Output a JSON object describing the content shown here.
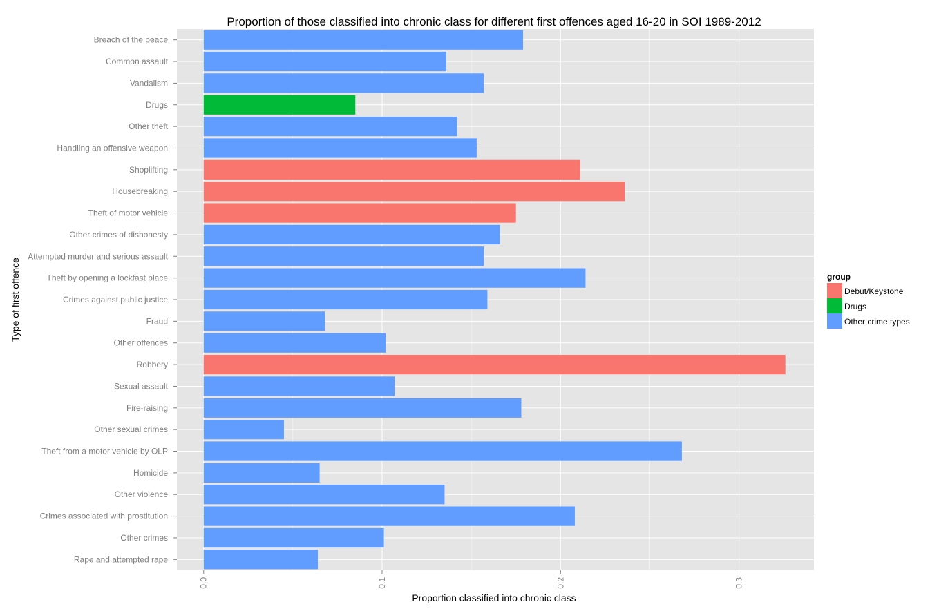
{
  "chart_data": {
    "type": "bar",
    "orientation": "horizontal",
    "title": "Proportion of those classified into chronic class for different first offences aged 16-20 in SOI 1989-2012",
    "xlabel": "Proportion classified into chronic class",
    "ylabel": "Type of first offence",
    "xlim": [
      -0.015,
      0.342
    ],
    "x_ticks": [
      "0.0",
      "0.1",
      "0.2",
      "0.3"
    ],
    "grid": true,
    "legend": {
      "title": "group",
      "placement": "right",
      "entries": [
        {
          "label": "Debut/Keystone",
          "color": "#F8766D"
        },
        {
          "label": "Drugs",
          "color": "#00BA38"
        },
        {
          "label": "Other crime types",
          "color": "#619CFF"
        }
      ]
    },
    "categories": [
      "Breach of the peace",
      "Common assault",
      "Vandalism",
      "Drugs",
      "Other theft",
      "Handling an offensive weapon",
      "Shoplifting",
      "Housebreaking",
      "Theft of motor vehicle",
      "Other crimes of dishonesty",
      "Attempted murder and serious assault",
      "Theft by opening a lockfast place",
      "Crimes against public justice",
      "Fraud",
      "Other offences",
      "Robbery",
      "Sexual assault",
      "Fire-raising",
      "Other sexual crimes",
      "Theft from a motor vehicle by OLP",
      "Homicide",
      "Other violence",
      "Crimes associated with prostitution",
      "Other crimes",
      "Rape and attempted rape"
    ],
    "values": [
      0.179,
      0.136,
      0.157,
      0.085,
      0.142,
      0.153,
      0.211,
      0.236,
      0.175,
      0.166,
      0.157,
      0.214,
      0.159,
      0.068,
      0.102,
      0.326,
      0.107,
      0.178,
      0.045,
      0.268,
      0.065,
      0.135,
      0.208,
      0.101,
      0.064
    ],
    "groups": [
      "Other crime types",
      "Other crime types",
      "Other crime types",
      "Drugs",
      "Other crime types",
      "Other crime types",
      "Debut/Keystone",
      "Debut/Keystone",
      "Debut/Keystone",
      "Other crime types",
      "Other crime types",
      "Other crime types",
      "Other crime types",
      "Other crime types",
      "Other crime types",
      "Debut/Keystone",
      "Other crime types",
      "Other crime types",
      "Other crime types",
      "Other crime types",
      "Other crime types",
      "Other crime types",
      "Other crime types",
      "Other crime types",
      "Other crime types"
    ]
  }
}
